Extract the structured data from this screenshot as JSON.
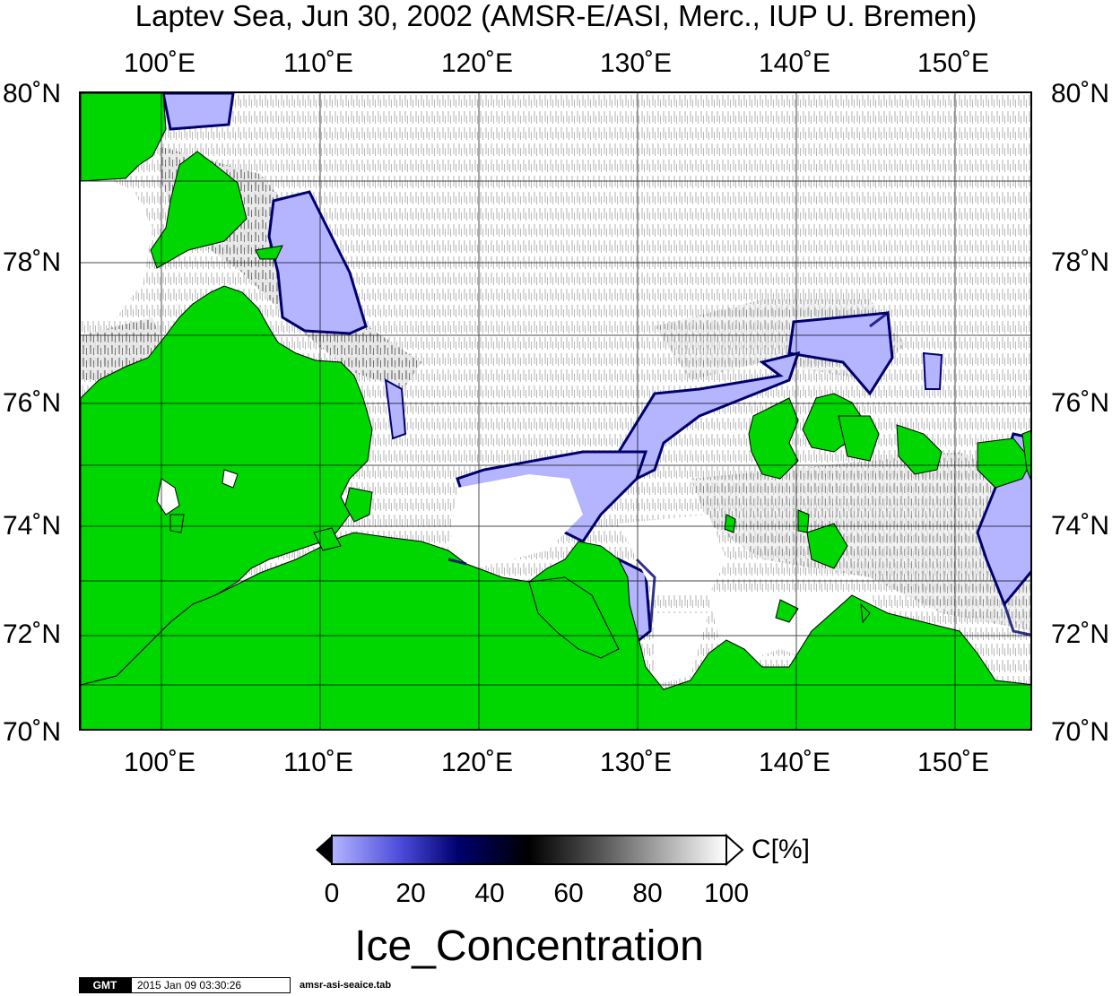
{
  "map": {
    "title": "Laptev Sea, Jun 30, 2002 (AMSR-E/ASI, Merc., IUP U. Bremen)",
    "projection": "Mercator",
    "lon_range": [
      95,
      155
    ],
    "lat_range": [
      70,
      80
    ],
    "lon_ticks": [
      "100˚E",
      "110˚E",
      "120˚E",
      "130˚E",
      "140˚E",
      "150˚E"
    ],
    "lat_ticks": [
      "80˚N",
      "78˚N",
      "76˚N",
      "74˚N",
      "72˚N",
      "70˚N"
    ],
    "colors": {
      "land": "#00d600",
      "ice_low": "#b4b4ff",
      "ice_mid": "#00006e",
      "ice_high": "#ffffff"
    },
    "grid": true
  },
  "colorbar": {
    "label": "C[%]",
    "ticks": [
      "0",
      "20",
      "40",
      "60",
      "80",
      "100"
    ],
    "range": [
      0,
      100
    ]
  },
  "variable_title": "Ice_Concentration",
  "footer": {
    "logo": "GMT",
    "timestamp": "2015 Jan 09 03:30:26",
    "filename": "amsr-asi-seaice.tab"
  }
}
